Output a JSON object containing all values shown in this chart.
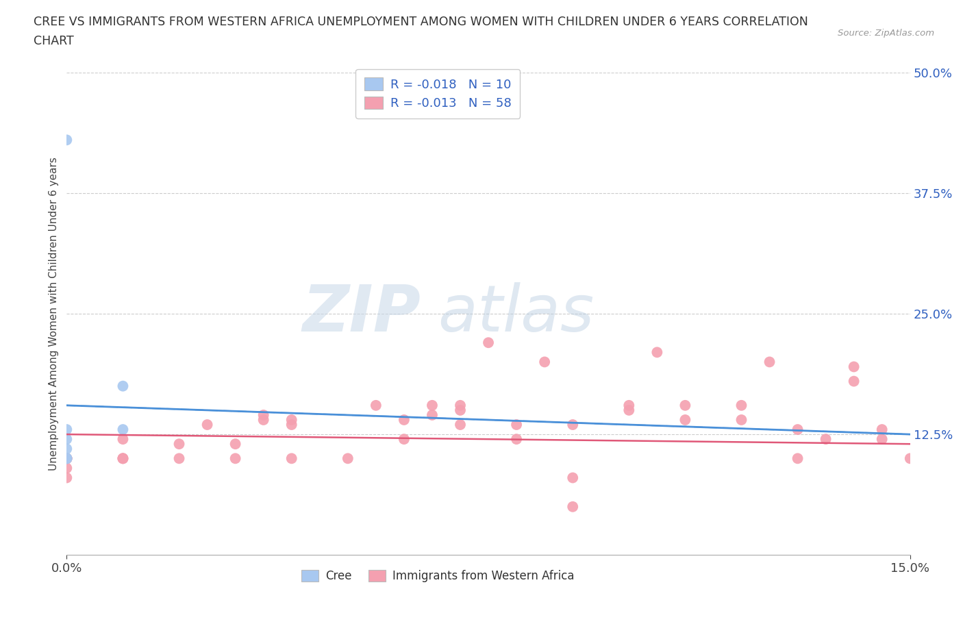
{
  "title": "CREE VS IMMIGRANTS FROM WESTERN AFRICA UNEMPLOYMENT AMONG WOMEN WITH CHILDREN UNDER 6 YEARS CORRELATION\nCHART",
  "source": "Source: ZipAtlas.com",
  "ylabel": "Unemployment Among Women with Children Under 6 years",
  "xlim": [
    0.0,
    0.15
  ],
  "ylim": [
    0.0,
    0.5
  ],
  "xtick_labels": [
    "0.0%",
    "15.0%"
  ],
  "ytick_labels": [
    "12.5%",
    "25.0%",
    "37.5%",
    "50.0%"
  ],
  "ytick_values": [
    0.125,
    0.25,
    0.375,
    0.5
  ],
  "xtick_values": [
    0.0,
    0.15
  ],
  "cree_color": "#a8c8f0",
  "immigrants_color": "#f4a0b0",
  "cree_line_color": "#4a90d9",
  "immigrants_line_color_solid": "#e05878",
  "immigrants_line_color_dashed": "#7ab0d8",
  "legend_R_color": "#3060c0",
  "watermark_zip": "ZIP",
  "watermark_atlas": "atlas",
  "cree_x": [
    0.0,
    0.0,
    0.0,
    0.0,
    0.0,
    0.0,
    0.0,
    0.0,
    0.01,
    0.01
  ],
  "cree_y": [
    0.43,
    0.13,
    0.12,
    0.11,
    0.1,
    0.1,
    0.1,
    0.1,
    0.175,
    0.13
  ],
  "immigrants_x": [
    0.0,
    0.0,
    0.0,
    0.0,
    0.0,
    0.0,
    0.0,
    0.0,
    0.0,
    0.0,
    0.0,
    0.0,
    0.01,
    0.01,
    0.01,
    0.01,
    0.02,
    0.02,
    0.025,
    0.03,
    0.03,
    0.035,
    0.035,
    0.04,
    0.04,
    0.04,
    0.05,
    0.055,
    0.06,
    0.06,
    0.065,
    0.065,
    0.07,
    0.07,
    0.07,
    0.075,
    0.08,
    0.08,
    0.085,
    0.09,
    0.09,
    0.09,
    0.1,
    0.1,
    0.105,
    0.11,
    0.11,
    0.12,
    0.12,
    0.125,
    0.13,
    0.13,
    0.135,
    0.14,
    0.14,
    0.145,
    0.145,
    0.15
  ],
  "immigrants_y": [
    0.1,
    0.1,
    0.1,
    0.1,
    0.1,
    0.1,
    0.1,
    0.1,
    0.1,
    0.1,
    0.08,
    0.09,
    0.1,
    0.1,
    0.1,
    0.12,
    0.115,
    0.1,
    0.135,
    0.1,
    0.115,
    0.14,
    0.145,
    0.1,
    0.135,
    0.14,
    0.1,
    0.155,
    0.12,
    0.14,
    0.145,
    0.155,
    0.135,
    0.155,
    0.15,
    0.22,
    0.12,
    0.135,
    0.2,
    0.05,
    0.08,
    0.135,
    0.15,
    0.155,
    0.21,
    0.14,
    0.155,
    0.14,
    0.155,
    0.2,
    0.1,
    0.13,
    0.12,
    0.18,
    0.195,
    0.13,
    0.12,
    0.1
  ],
  "cree_trend_x": [
    0.0,
    0.15
  ],
  "cree_trend_y": [
    0.155,
    0.125
  ],
  "immigrants_solid_trend_x": [
    0.0,
    0.15
  ],
  "immigrants_solid_trend_y": [
    0.125,
    0.115
  ],
  "immigrants_dashed_trend_x": [
    0.0,
    0.15
  ],
  "immigrants_dashed_trend_y": [
    0.155,
    0.125
  ]
}
